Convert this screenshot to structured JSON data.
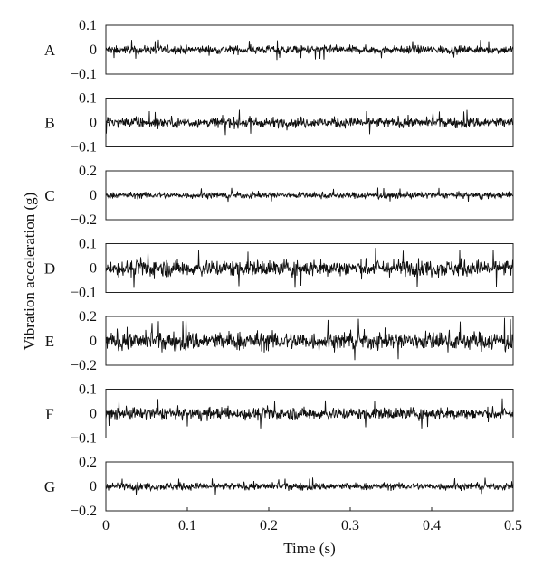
{
  "chart_data": {
    "type": "line",
    "xlabel": "Time (s)",
    "ylabel": "Vibration acceleration (g)",
    "xlim": [
      0,
      0.5
    ],
    "x_ticks": [
      "0",
      "0.1",
      "0.2",
      "0.3",
      "0.4",
      "0.5"
    ],
    "line_color": "#111111",
    "grid": false,
    "panels": [
      {
        "label": "A",
        "ylim": [
          -0.1,
          0.1
        ],
        "y_ticks": [
          "0.1",
          "0",
          "−0.1"
        ],
        "approx_peak_amplitude": 0.04
      },
      {
        "label": "B",
        "ylim": [
          -0.1,
          0.1
        ],
        "y_ticks": [
          "0.1",
          "0",
          "−0.1"
        ],
        "approx_peak_amplitude": 0.05
      },
      {
        "label": "C",
        "ylim": [
          -0.2,
          0.2
        ],
        "y_ticks": [
          "0.2",
          "0",
          "−0.2"
        ],
        "approx_peak_amplitude": 0.06
      },
      {
        "label": "D",
        "ylim": [
          -0.1,
          0.1
        ],
        "y_ticks": [
          "0.1",
          "0",
          "−0.1"
        ],
        "approx_peak_amplitude": 0.08
      },
      {
        "label": "E",
        "ylim": [
          -0.2,
          0.2
        ],
        "y_ticks": [
          "0.2",
          "0",
          "−0.2"
        ],
        "approx_peak_amplitude": 0.18
      },
      {
        "label": "F",
        "ylim": [
          -0.1,
          0.1
        ],
        "y_ticks": [
          "0.1",
          "0",
          "−0.1"
        ],
        "approx_peak_amplitude": 0.06
      },
      {
        "label": "G",
        "ylim": [
          -0.2,
          0.2
        ],
        "y_ticks": [
          "0.2",
          "0",
          "−0.2"
        ],
        "approx_peak_amplitude": 0.07
      }
    ]
  }
}
